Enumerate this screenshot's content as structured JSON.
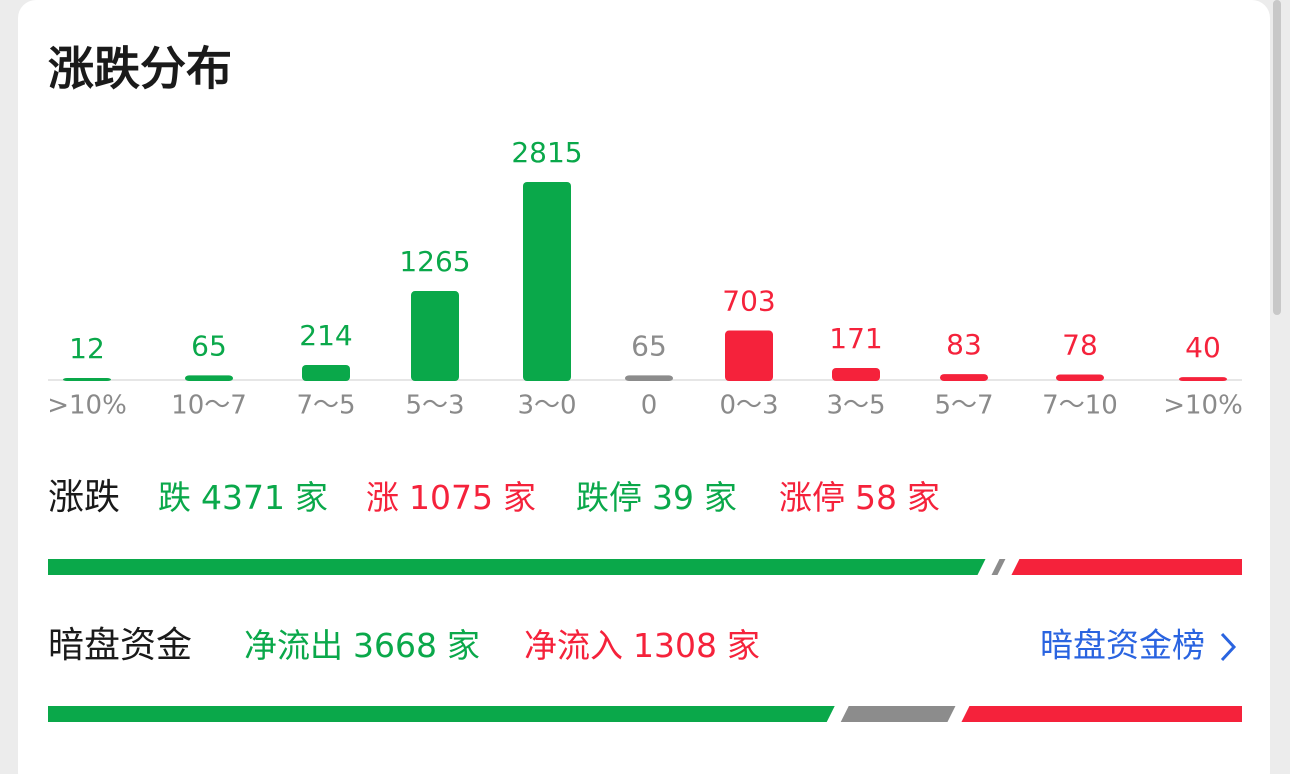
{
  "chart_data": {
    "type": "bar",
    "title": "涨跌分布",
    "categories": [
      ">10%",
      "10～7",
      "7～5",
      "5～3",
      "3～0",
      "0",
      "0～3",
      "3～5",
      "5～7",
      "7～10",
      ">10%"
    ],
    "values": [
      12,
      65,
      214,
      1265,
      2815,
      65,
      703,
      171,
      83,
      78,
      40
    ],
    "colors": [
      "#0aa84a",
      "#0aa84a",
      "#0aa84a",
      "#0aa84a",
      "#0aa84a",
      "#8c8c8c",
      "#f5223b",
      "#f5223b",
      "#f5223b",
      "#f5223b",
      "#f5223b"
    ]
  },
  "summary": {
    "label": "涨跌",
    "items": [
      {
        "prefix": "跌",
        "value": 4371,
        "unit": "家",
        "color": "#0aa84a"
      },
      {
        "prefix": "涨",
        "value": 1075,
        "unit": "家",
        "color": "#f5223b"
      },
      {
        "prefix": "跌停",
        "value": 39,
        "unit": "家",
        "color": "#0aa84a"
      },
      {
        "prefix": "涨停",
        "value": 58,
        "unit": "家",
        "color": "#f5223b"
      }
    ]
  },
  "flow": {
    "label": "暗盘资金",
    "items": [
      {
        "prefix": "净流出",
        "value": 3668,
        "unit": "家",
        "color": "#0aa84a"
      },
      {
        "prefix": "净流入",
        "value": 1308,
        "unit": "家",
        "color": "#f5223b"
      }
    ],
    "neutral": 535,
    "link": "暗盘资金榜"
  }
}
